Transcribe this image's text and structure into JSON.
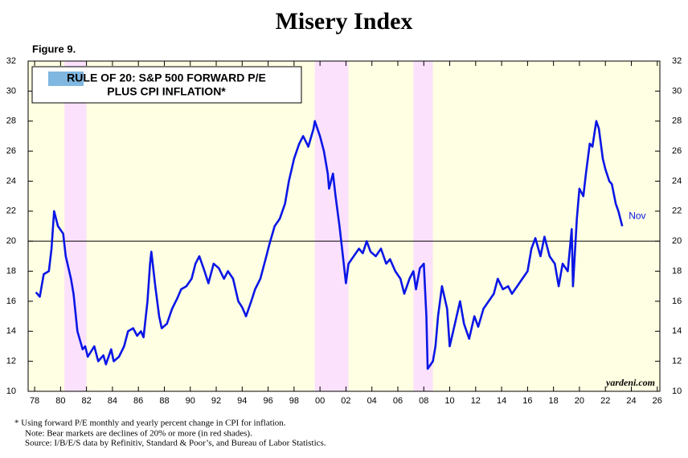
{
  "chart_data": {
    "type": "line",
    "title": "Misery Index",
    "figure_label": "Figure 9.",
    "box_title": [
      "RULE OF 20: S&P 500 FORWARD P/E",
      "PLUS CPI INFLATION*"
    ],
    "end_label": "Nov",
    "source_mark": "yardeni.com",
    "footnotes": [
      "*  Using forward P/E monthly and yearly percent change in CPI for inflation.",
      "Note: Bear markets are declines of 20% or more (in red shades).",
      "Source: I/B/E/S data by Refinitiv, Standard & Poor’s, and Bureau of Labor Statistics."
    ],
    "color": "#0a16e6",
    "shade_color": "#fbe1fb",
    "background": "#ffffe3",
    "reference_line": 20,
    "bear_markets": [
      [
        1980.3,
        1982.0
      ],
      [
        1999.6,
        2002.2
      ],
      [
        2007.2,
        2008.7
      ]
    ],
    "xlim": [
      1977.5,
      2026.2
    ],
    "ylim": [
      10,
      32
    ],
    "yticks": [
      10,
      12,
      14,
      16,
      18,
      20,
      22,
      24,
      26,
      28,
      30,
      32
    ],
    "xticks": [
      {
        "value": 1978,
        "label": "78"
      },
      {
        "value": 1980,
        "label": "80"
      },
      {
        "value": 1982,
        "label": "82"
      },
      {
        "value": 1984,
        "label": "84"
      },
      {
        "value": 1986,
        "label": "86"
      },
      {
        "value": 1988,
        "label": "88"
      },
      {
        "value": 1990,
        "label": "90"
      },
      {
        "value": 1992,
        "label": "92"
      },
      {
        "value": 1994,
        "label": "94"
      },
      {
        "value": 1996,
        "label": "96"
      },
      {
        "value": 1998,
        "label": "98"
      },
      {
        "value": 2000,
        "label": "00"
      },
      {
        "value": 2002,
        "label": "02"
      },
      {
        "value": 2004,
        "label": "04"
      },
      {
        "value": 2006,
        "label": "06"
      },
      {
        "value": 2008,
        "label": "08"
      },
      {
        "value": 2010,
        "label": "10"
      },
      {
        "value": 2012,
        "label": "12"
      },
      {
        "value": 2014,
        "label": "14"
      },
      {
        "value": 2016,
        "label": "16"
      },
      {
        "value": 2018,
        "label": "18"
      },
      {
        "value": 2020,
        "label": "20"
      },
      {
        "value": 2022,
        "label": "22"
      },
      {
        "value": 2024,
        "label": "24"
      },
      {
        "value": 2026,
        "label": "26"
      }
    ],
    "x": [
      1978.1,
      1978.4,
      1978.7,
      1979.1,
      1979.3,
      1979.5,
      1979.8,
      1980.2,
      1980.4,
      1980.8,
      1981.0,
      1981.3,
      1981.7,
      1981.9,
      1982.1,
      1982.6,
      1982.9,
      1983.3,
      1983.5,
      1983.9,
      1984.1,
      1984.5,
      1984.9,
      1985.2,
      1985.6,
      1985.9,
      1986.2,
      1986.4,
      1986.7,
      1986.9,
      1987.0,
      1987.3,
      1987.6,
      1987.8,
      1988.2,
      1988.6,
      1989.0,
      1989.3,
      1989.7,
      1990.1,
      1990.4,
      1990.7,
      1991.1,
      1991.4,
      1991.8,
      1992.2,
      1992.6,
      1992.9,
      1993.3,
      1993.7,
      1994.0,
      1994.3,
      1994.7,
      1995.0,
      1995.4,
      1995.8,
      1996.1,
      1996.5,
      1996.9,
      1997.3,
      1997.6,
      1998.0,
      1998.4,
      1998.7,
      1999.1,
      1999.5,
      1999.6,
      2000.0,
      2000.3,
      2000.6,
      2000.7,
      2001.0,
      2001.2,
      2001.5,
      2001.7,
      2002.0,
      2002.2,
      2002.6,
      2003.0,
      2003.3,
      2003.6,
      2003.9,
      2004.3,
      2004.7,
      2005.1,
      2005.4,
      2005.8,
      2006.2,
      2006.5,
      2006.9,
      2007.2,
      2007.4,
      2007.7,
      2008.0,
      2008.2,
      2008.3,
      2008.7,
      2008.9,
      2009.1,
      2009.4,
      2009.8,
      2010.0,
      2010.4,
      2010.8,
      2011.1,
      2011.5,
      2011.9,
      2012.2,
      2012.6,
      2013.0,
      2013.4,
      2013.7,
      2014.1,
      2014.5,
      2014.8,
      2015.2,
      2015.6,
      2016.0,
      2016.3,
      2016.6,
      2017.0,
      2017.3,
      2017.7,
      2018.1,
      2018.4,
      2018.7,
      2019.1,
      2019.4,
      2019.5,
      2019.8,
      2020.0,
      2020.3,
      2020.5,
      2020.8,
      2021.0,
      2021.3,
      2021.5,
      2021.8,
      2022.0,
      2022.3,
      2022.5,
      2022.8,
      2023.0,
      2023.3
    ],
    "values": [
      16.6,
      16.3,
      17.8,
      18.0,
      19.5,
      22.0,
      21.0,
      20.5,
      19.0,
      17.5,
      16.5,
      14.0,
      12.8,
      13.0,
      12.3,
      13.0,
      12.0,
      12.4,
      11.8,
      12.8,
      12.0,
      12.3,
      13.0,
      14.0,
      14.2,
      13.7,
      14.0,
      13.6,
      16.0,
      18.5,
      19.3,
      17.0,
      15.0,
      14.2,
      14.5,
      15.5,
      16.2,
      16.8,
      17.0,
      17.5,
      18.5,
      19.0,
      18.0,
      17.2,
      18.5,
      18.2,
      17.5,
      18.0,
      17.5,
      16.0,
      15.6,
      15.0,
      16.0,
      16.8,
      17.5,
      18.8,
      19.8,
      21.0,
      21.5,
      22.5,
      24.0,
      25.5,
      26.5,
      27.0,
      26.3,
      27.5,
      28.0,
      27.0,
      26.0,
      24.5,
      23.5,
      24.5,
      23.0,
      21.0,
      19.5,
      17.2,
      18.5,
      19.0,
      19.5,
      19.2,
      20.0,
      19.3,
      19.0,
      19.5,
      18.5,
      18.8,
      18.0,
      17.5,
      16.5,
      17.5,
      18.0,
      16.8,
      18.2,
      18.5,
      15.0,
      11.5,
      12.0,
      13.0,
      15.0,
      17.0,
      15.5,
      13.0,
      14.5,
      16.0,
      14.5,
      13.5,
      15.0,
      14.3,
      15.5,
      16.0,
      16.5,
      17.5,
      16.8,
      17.0,
      16.5,
      17.0,
      17.5,
      18.0,
      19.5,
      20.2,
      19.0,
      20.3,
      19.0,
      18.5,
      17.0,
      18.5,
      18.0,
      20.8,
      17.0,
      21.5,
      23.5,
      23.0,
      24.5,
      26.5,
      26.3,
      28.0,
      27.5,
      25.5,
      24.8,
      24.0,
      23.8,
      22.5,
      22.0,
      21.0
    ]
  }
}
